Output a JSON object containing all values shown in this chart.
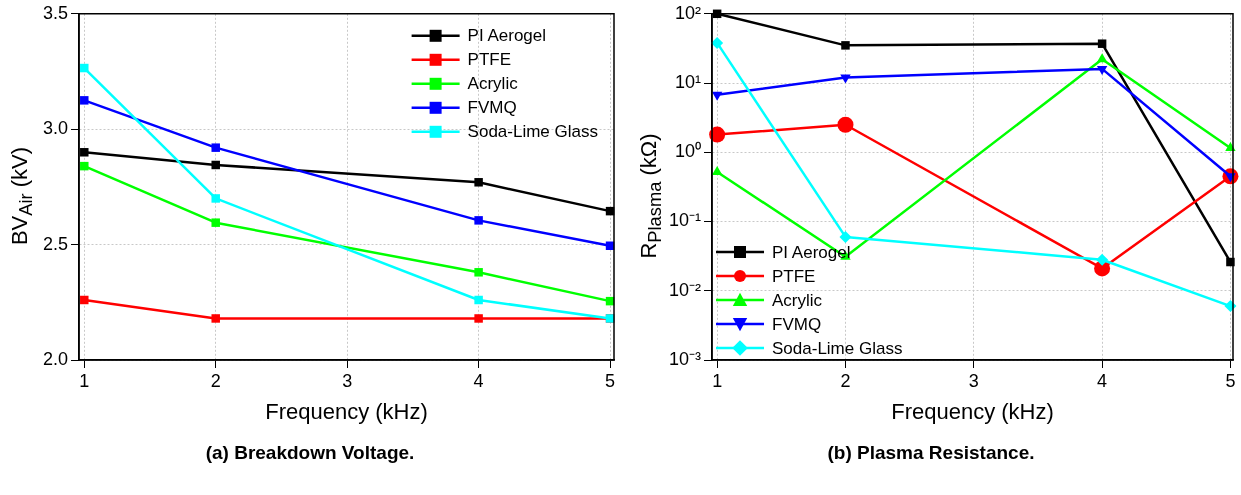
{
  "chart_data": [
    {
      "type": "line",
      "title": "(a) Breakdown Voltage.",
      "xlabel": "Frequency (kHz)",
      "ylabel": "BV$_{Air}$ (kV)",
      "x": [
        1,
        2,
        4,
        5
      ],
      "xlim": [
        0.96,
        5.03
      ],
      "xticks": [
        1,
        2,
        3,
        4,
        5
      ],
      "ylim": [
        2,
        3.5
      ],
      "yticks": [
        {
          "value": 2,
          "label": "2.0"
        },
        {
          "value": 2.5,
          "label": "2.5"
        },
        {
          "value": 3,
          "label": "3.0"
        },
        {
          "value": 3.5,
          "label": "3.5"
        }
      ],
      "grid": true,
      "legend": "top right",
      "marker": "square",
      "series": [
        {
          "name": "PI Aerogel",
          "color": "#000000",
          "values": [
            2.9,
            2.845,
            2.77,
            2.645
          ]
        },
        {
          "name": "PTFE",
          "color": "#ff0000",
          "values": [
            2.26,
            2.18,
            2.18,
            2.18
          ]
        },
        {
          "name": "Acrylic",
          "color": "#00ff00",
          "values": [
            2.84,
            2.595,
            2.38,
            2.255
          ]
        },
        {
          "name": "FVMQ",
          "color": "#0000ff",
          "values": [
            3.125,
            2.92,
            2.605,
            2.495
          ]
        },
        {
          "name": "Soda-Lime Glass",
          "color": "#00ffff",
          "values": [
            3.265,
            2.7,
            2.26,
            2.18
          ]
        }
      ]
    },
    {
      "type": "line",
      "title": "(b) Plasma Resistance.",
      "xlabel": "Frequency (kHz)",
      "ylabel": "R$_{Plasma}$ (kΩ)",
      "x": [
        1,
        2,
        4,
        5
      ],
      "xlim": [
        0.96,
        5.02
      ],
      "xticks": [
        1,
        2,
        3,
        4,
        5
      ],
      "log": true,
      "ylim": [
        0.001,
        100
      ],
      "yticks": [
        {
          "value": 0.001,
          "label": "10⁻³"
        },
        {
          "value": 0.01,
          "label": "10⁻²"
        },
        {
          "value": 0.1,
          "label": "10⁻¹"
        },
        {
          "value": 1,
          "label": "10⁰"
        },
        {
          "value": 10,
          "label": "10¹"
        },
        {
          "value": 100,
          "label": "10²"
        }
      ],
      "grid": true,
      "legend": "bottom left",
      "series": [
        {
          "name": "PI Aerogel",
          "color": "#000000",
          "marker": "square",
          "values": [
            100,
            35,
            37,
            0.026
          ]
        },
        {
          "name": "PTFE",
          "color": "#ff0000",
          "marker": "circle",
          "values": [
            1.8,
            2.5,
            0.021,
            0.45
          ]
        },
        {
          "name": "Acrylic",
          "color": "#00ff00",
          "marker": "triangle",
          "values": [
            0.52,
            0.031,
            22,
            1.15
          ]
        },
        {
          "name": "FVMQ",
          "color": "#0000ff",
          "marker": "triangle-down",
          "values": [
            6.8,
            12,
            16,
            0.45
          ]
        },
        {
          "name": "Soda-Lime Glass",
          "color": "#00ffff",
          "marker": "diamond",
          "values": [
            38,
            0.06,
            0.028,
            0.006
          ]
        }
      ]
    }
  ]
}
